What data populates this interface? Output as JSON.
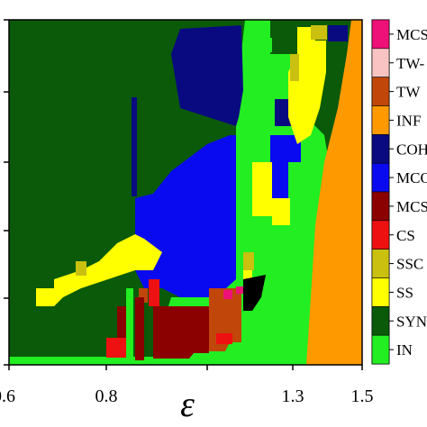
{
  "chart_data": {
    "type": "heatmap",
    "title": "",
    "xlabel": "ε",
    "ylabel": "",
    "x_ticks": [
      "0.6",
      "0.8",
      "1.3",
      "1.5"
    ],
    "x_tick_values": [
      0.6,
      0.8,
      1.3,
      1.5
    ],
    "xlim": [
      0.6,
      1.5
    ],
    "legend_placement": "right",
    "legend": [
      {
        "label": "MCS",
        "color": "#ee1177"
      },
      {
        "label": "TW-",
        "color": "#f9c3c3"
      },
      {
        "label": "TW",
        "color": "#c0460a"
      },
      {
        "label": "INF",
        "color": "#ff9900"
      },
      {
        "label": "COH",
        "color": "#0a0a80"
      },
      {
        "label": "MCO",
        "color": "#0a0af0"
      },
      {
        "label": "MCS",
        "color": "#8b0000"
      },
      {
        "label": "CS",
        "color": "#ee1111"
      },
      {
        "label": "SSC",
        "color": "#c9c010"
      },
      {
        "label": "SS",
        "color": "#ffff00"
      },
      {
        "label": "SYN",
        "color": "#0a5a0a"
      },
      {
        "label": "IN",
        "color": "#22ee22"
      }
    ],
    "region_colors": {
      "SYN": "#0a5a0a",
      "IN": "#22ee22",
      "SS": "#ffff00",
      "SSC": "#c9c010",
      "MCO": "#0a0af0",
      "COH": "#0a0a80",
      "INF": "#ff9900",
      "TW": "#c0460a",
      "TW-": "#f9c3c3",
      "MCS_dark": "#8b0000",
      "CS": "#ee1111",
      "MCS_pink": "#ee1177"
    }
  }
}
